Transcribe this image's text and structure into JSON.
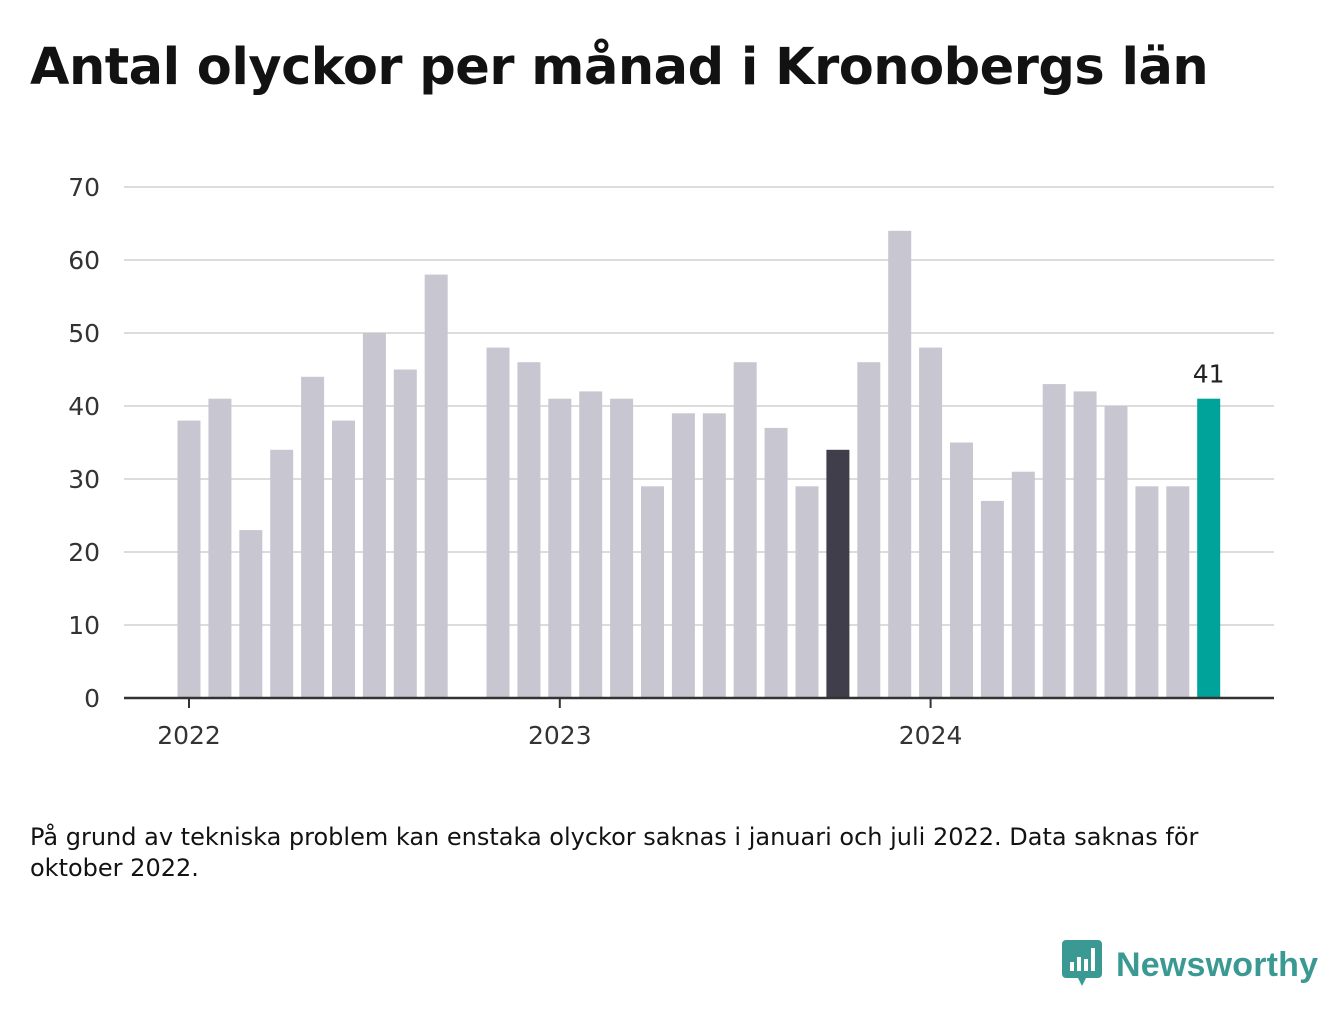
{
  "title": "Antal olyckor per månad i Kronobergs län",
  "note": "På grund av tekniska problem kan enstaka olyckor saknas i januari och juli 2022. Data saknas för oktober 2022.",
  "brand": {
    "name": "Newsworthy",
    "icon": "newsworthy-logo-icon",
    "color": "#3a9a93"
  },
  "chart_data": {
    "type": "bar",
    "x_tick_labels": [
      "2022",
      "2023",
      "2024"
    ],
    "ylim": [
      0,
      70
    ],
    "yticks": [
      0,
      10,
      20,
      30,
      40,
      50,
      60,
      70
    ],
    "grid": true,
    "categories": [
      "2022-01",
      "2022-02",
      "2022-03",
      "2022-04",
      "2022-05",
      "2022-06",
      "2022-07",
      "2022-08",
      "2022-09",
      "2022-10",
      "2022-11",
      "2022-12",
      "2023-01",
      "2023-02",
      "2023-03",
      "2023-04",
      "2023-05",
      "2023-06",
      "2023-07",
      "2023-08",
      "2023-09",
      "2023-10",
      "2023-11",
      "2023-12",
      "2024-01",
      "2024-02",
      "2024-03",
      "2024-04",
      "2024-05",
      "2024-06",
      "2024-07",
      "2024-08",
      "2024-09",
      "2024-10"
    ],
    "values": [
      38,
      41,
      23,
      34,
      44,
      38,
      50,
      45,
      58,
      null,
      48,
      46,
      41,
      42,
      41,
      29,
      39,
      39,
      46,
      37,
      29,
      34,
      46,
      64,
      48,
      35,
      27,
      31,
      43,
      42,
      40,
      29,
      29,
      41
    ],
    "colors": {
      "default": "#c8c7d1",
      "reference": "#3f3e4a",
      "latest": "#00a39a"
    },
    "highlights": {
      "2023-10": "reference",
      "2024-10": "latest"
    },
    "data_labels": [
      {
        "category": "2024-10",
        "text": "41"
      }
    ]
  }
}
